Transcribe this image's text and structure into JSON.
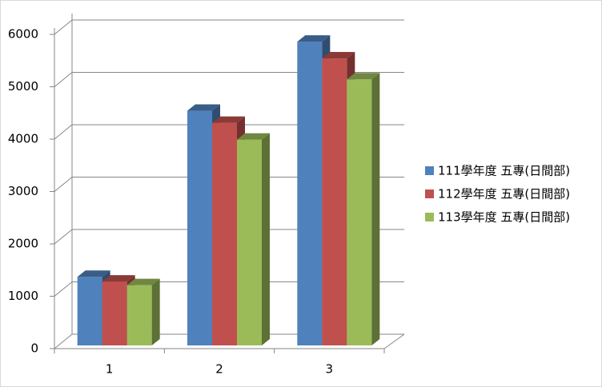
{
  "chart_data": {
    "type": "bar3d",
    "categories": [
      "1",
      "2",
      "3"
    ],
    "series": [
      {
        "name": "111學年度 五專(日間部)",
        "color": "#4f81bd",
        "values": [
          1310,
          4480,
          5800
        ]
      },
      {
        "name": "112學年度 五專(日間部)",
        "color": "#c0504d",
        "values": [
          1220,
          4250,
          5480
        ]
      },
      {
        "name": "113學年度 五專(日間部)",
        "color": "#9bbb59",
        "values": [
          1150,
          3930,
          5080
        ]
      }
    ],
    "ylim": [
      0,
      6000
    ],
    "yticks": [
      0,
      1000,
      2000,
      3000,
      4000,
      5000,
      6000
    ],
    "grid": true,
    "legend": "right"
  }
}
